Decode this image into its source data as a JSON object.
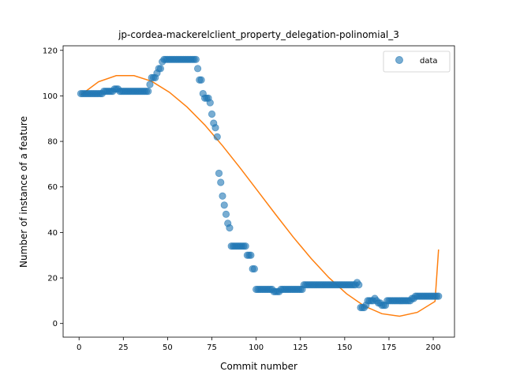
{
  "chart_data": {
    "type": "scatter",
    "title": "jp-cordea-mackerelclient_property_delegation-polinomial_3",
    "xlabel": "Commit number",
    "ylabel": "Number of instance of a feature",
    "xlim": [
      -9,
      212
    ],
    "ylim": [
      -6,
      122
    ],
    "xticks": [
      0,
      25,
      50,
      75,
      100,
      125,
      150,
      175,
      200
    ],
    "yticks": [
      0,
      20,
      40,
      60,
      80,
      100,
      120
    ],
    "grid": false,
    "legend": {
      "placement": "top-right",
      "entries": [
        "data"
      ]
    },
    "colors": {
      "points": "#1f77b4",
      "fit": "#ff7f0e"
    },
    "series": [
      {
        "name": "data",
        "kind": "scatter",
        "points": [
          [
            1,
            101
          ],
          [
            2,
            101
          ],
          [
            3,
            101
          ],
          [
            4,
            101
          ],
          [
            5,
            101
          ],
          [
            6,
            101
          ],
          [
            7,
            101
          ],
          [
            8,
            101
          ],
          [
            9,
            101
          ],
          [
            10,
            101
          ],
          [
            11,
            101
          ],
          [
            12,
            101
          ],
          [
            13,
            101
          ],
          [
            14,
            102
          ],
          [
            15,
            102
          ],
          [
            16,
            102
          ],
          [
            17,
            102
          ],
          [
            18,
            102
          ],
          [
            19,
            102
          ],
          [
            20,
            103
          ],
          [
            21,
            103
          ],
          [
            22,
            103
          ],
          [
            23,
            102
          ],
          [
            24,
            102
          ],
          [
            25,
            102
          ],
          [
            26,
            102
          ],
          [
            27,
            102
          ],
          [
            28,
            102
          ],
          [
            29,
            102
          ],
          [
            30,
            102
          ],
          [
            31,
            102
          ],
          [
            32,
            102
          ],
          [
            33,
            102
          ],
          [
            34,
            102
          ],
          [
            35,
            102
          ],
          [
            36,
            102
          ],
          [
            37,
            102
          ],
          [
            38,
            102
          ],
          [
            39,
            102
          ],
          [
            40,
            105
          ],
          [
            41,
            108
          ],
          [
            42,
            108
          ],
          [
            43,
            108
          ],
          [
            44,
            110
          ],
          [
            45,
            112
          ],
          [
            46,
            112
          ],
          [
            47,
            115
          ],
          [
            48,
            116
          ],
          [
            49,
            116
          ],
          [
            50,
            116
          ],
          [
            51,
            116
          ],
          [
            52,
            116
          ],
          [
            53,
            116
          ],
          [
            54,
            116
          ],
          [
            55,
            116
          ],
          [
            56,
            116
          ],
          [
            57,
            116
          ],
          [
            58,
            116
          ],
          [
            59,
            116
          ],
          [
            60,
            116
          ],
          [
            61,
            116
          ],
          [
            62,
            116
          ],
          [
            63,
            116
          ],
          [
            64,
            116
          ],
          [
            65,
            116
          ],
          [
            66,
            116
          ],
          [
            67,
            112
          ],
          [
            68,
            107
          ],
          [
            69,
            107
          ],
          [
            70,
            101
          ],
          [
            71,
            99
          ],
          [
            72,
            99
          ],
          [
            73,
            99
          ],
          [
            74,
            97
          ],
          [
            75,
            92
          ],
          [
            76,
            88
          ],
          [
            77,
            86
          ],
          [
            78,
            82
          ],
          [
            79,
            66
          ],
          [
            80,
            62
          ],
          [
            81,
            56
          ],
          [
            82,
            52
          ],
          [
            83,
            48
          ],
          [
            84,
            44
          ],
          [
            85,
            42
          ],
          [
            86,
            34
          ],
          [
            87,
            34
          ],
          [
            88,
            34
          ],
          [
            89,
            34
          ],
          [
            90,
            34
          ],
          [
            91,
            34
          ],
          [
            92,
            34
          ],
          [
            93,
            34
          ],
          [
            94,
            34
          ],
          [
            95,
            30
          ],
          [
            96,
            30
          ],
          [
            97,
            30
          ],
          [
            98,
            24
          ],
          [
            99,
            24
          ],
          [
            100,
            15
          ],
          [
            101,
            15
          ],
          [
            102,
            15
          ],
          [
            103,
            15
          ],
          [
            104,
            15
          ],
          [
            105,
            15
          ],
          [
            106,
            15
          ],
          [
            107,
            15
          ],
          [
            108,
            15
          ],
          [
            109,
            15
          ],
          [
            110,
            14
          ],
          [
            111,
            14
          ],
          [
            112,
            14
          ],
          [
            113,
            14
          ],
          [
            114,
            15
          ],
          [
            115,
            15
          ],
          [
            116,
            15
          ],
          [
            117,
            15
          ],
          [
            118,
            15
          ],
          [
            119,
            15
          ],
          [
            120,
            15
          ],
          [
            121,
            15
          ],
          [
            122,
            15
          ],
          [
            123,
            15
          ],
          [
            124,
            15
          ],
          [
            125,
            15
          ],
          [
            126,
            15
          ],
          [
            127,
            17
          ],
          [
            128,
            17
          ],
          [
            129,
            17
          ],
          [
            130,
            17
          ],
          [
            131,
            17
          ],
          [
            132,
            17
          ],
          [
            133,
            17
          ],
          [
            134,
            17
          ],
          [
            135,
            17
          ],
          [
            136,
            17
          ],
          [
            137,
            17
          ],
          [
            138,
            17
          ],
          [
            139,
            17
          ],
          [
            140,
            17
          ],
          [
            141,
            17
          ],
          [
            142,
            17
          ],
          [
            143,
            17
          ],
          [
            144,
            17
          ],
          [
            145,
            17
          ],
          [
            146,
            17
          ],
          [
            147,
            17
          ],
          [
            148,
            17
          ],
          [
            149,
            17
          ],
          [
            150,
            17
          ],
          [
            151,
            17
          ],
          [
            152,
            17
          ],
          [
            153,
            17
          ],
          [
            154,
            17
          ],
          [
            155,
            17
          ],
          [
            156,
            17
          ],
          [
            157,
            18
          ],
          [
            158,
            17
          ],
          [
            159,
            7
          ],
          [
            160,
            7
          ],
          [
            161,
            7
          ],
          [
            162,
            8
          ],
          [
            163,
            10
          ],
          [
            164,
            10
          ],
          [
            165,
            10
          ],
          [
            166,
            10
          ],
          [
            167,
            11
          ],
          [
            168,
            10
          ],
          [
            169,
            9
          ],
          [
            170,
            9
          ],
          [
            171,
            8
          ],
          [
            172,
            8
          ],
          [
            173,
            8
          ],
          [
            174,
            10
          ],
          [
            175,
            10
          ],
          [
            176,
            10
          ],
          [
            177,
            10
          ],
          [
            178,
            10
          ],
          [
            179,
            10
          ],
          [
            180,
            10
          ],
          [
            181,
            10
          ],
          [
            182,
            10
          ],
          [
            183,
            10
          ],
          [
            184,
            10
          ],
          [
            185,
            10
          ],
          [
            186,
            10
          ],
          [
            187,
            10
          ],
          [
            188,
            11
          ],
          [
            189,
            11
          ],
          [
            190,
            12
          ],
          [
            191,
            12
          ],
          [
            192,
            12
          ],
          [
            193,
            12
          ],
          [
            194,
            12
          ],
          [
            195,
            12
          ],
          [
            196,
            12
          ],
          [
            197,
            12
          ],
          [
            198,
            12
          ],
          [
            199,
            12
          ],
          [
            200,
            12
          ],
          [
            201,
            12
          ],
          [
            202,
            12
          ],
          [
            203,
            12
          ]
        ]
      },
      {
        "name": "",
        "kind": "line",
        "points": [
          [
            1,
            100.4
          ],
          [
            11,
            106.2
          ],
          [
            21,
            108.9
          ],
          [
            31,
            108.9
          ],
          [
            41,
            106.4
          ],
          [
            51,
            101.6
          ],
          [
            61,
            95.1
          ],
          [
            71,
            87.2
          ],
          [
            81,
            78.1
          ],
          [
            91,
            68.3
          ],
          [
            101,
            58.1
          ],
          [
            111,
            47.9
          ],
          [
            121,
            37.9
          ],
          [
            131,
            28.6
          ],
          [
            141,
            20.2
          ],
          [
            151,
            13.1
          ],
          [
            161,
            7.7
          ],
          [
            171,
            4.3
          ],
          [
            181,
            3.2
          ],
          [
            191,
            4.9
          ],
          [
            201,
            9.7
          ],
          [
            203,
            32.5
          ]
        ]
      }
    ]
  }
}
